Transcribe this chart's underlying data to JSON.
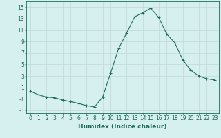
{
  "x": [
    0,
    1,
    2,
    3,
    4,
    5,
    6,
    7,
    8,
    9,
    10,
    11,
    12,
    13,
    14,
    15,
    16,
    17,
    18,
    19,
    20,
    21,
    22,
    23
  ],
  "y": [
    0.3,
    -0.3,
    -0.7,
    -0.8,
    -1.2,
    -1.5,
    -1.8,
    -2.2,
    -2.4,
    -0.7,
    3.5,
    7.8,
    10.5,
    13.3,
    14.0,
    14.8,
    13.2,
    10.3,
    8.8,
    5.8,
    4.0,
    3.0,
    2.5,
    2.3
  ],
  "line_color": "#1a6b5a",
  "marker": "+",
  "marker_size": 3,
  "marker_lw": 0.8,
  "bg_color": "#d6efef",
  "grid_color": "#c0d8d8",
  "xlabel": "Humidex (Indice chaleur)",
  "xlim": [
    -0.5,
    23.5
  ],
  "ylim": [
    -3.5,
    16.0
  ],
  "yticks": [
    -3,
    -1,
    1,
    3,
    5,
    7,
    9,
    11,
    13,
    15
  ],
  "xticks": [
    0,
    1,
    2,
    3,
    4,
    5,
    6,
    7,
    8,
    9,
    10,
    11,
    12,
    13,
    14,
    15,
    16,
    17,
    18,
    19,
    20,
    21,
    22,
    23
  ],
  "tick_fontsize": 5.5,
  "xlabel_fontsize": 6.5,
  "line_width": 0.8
}
